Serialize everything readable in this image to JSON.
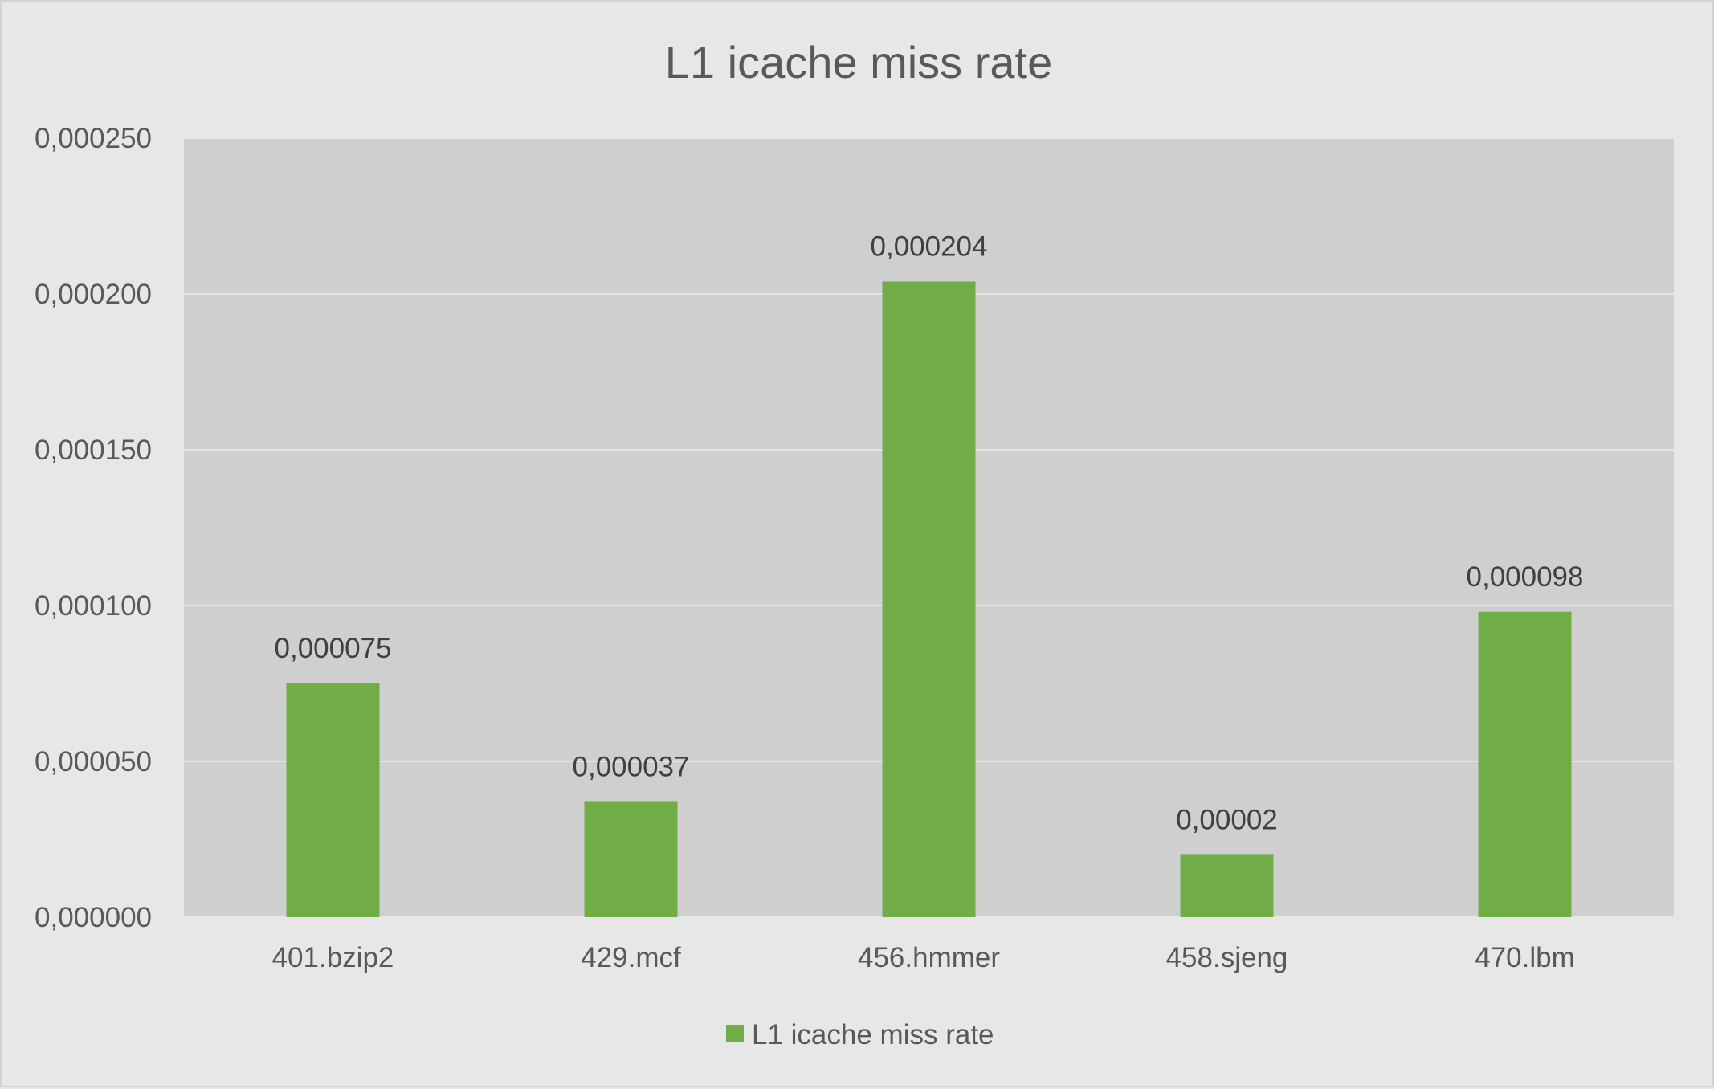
{
  "chart_data": {
    "type": "bar",
    "title": "L1 icache miss rate",
    "categories": [
      "401.bzip2",
      "429.mcf",
      "456.hmmer",
      "458.sjeng",
      "470.lbm"
    ],
    "series": [
      {
        "name": "L1 icache miss rate",
        "values": [
          7.5e-05,
          3.7e-05,
          0.000204,
          2e-05,
          9.8e-05
        ],
        "data_labels": [
          "0,000075",
          "0,000037",
          "0,000204",
          "0,00002",
          "0,000098"
        ],
        "color": "#70ad47"
      }
    ],
    "y_ticks": [
      0,
      5e-05,
      0.0001,
      0.00015,
      0.0002,
      0.00025
    ],
    "y_tick_labels": [
      "0,000000",
      "0,000050",
      "0,000100",
      "0,000150",
      "0,000200",
      "0,000250"
    ],
    "ylim": [
      0,
      0.00025
    ],
    "xlabel": "",
    "ylabel": "",
    "grid": true,
    "legend_position": "bottom",
    "colors": {
      "background": "#e7e7e7",
      "plot_area": "#d0cfd0",
      "gridline": "#e6e6e6",
      "bar": "#70ad47"
    }
  }
}
